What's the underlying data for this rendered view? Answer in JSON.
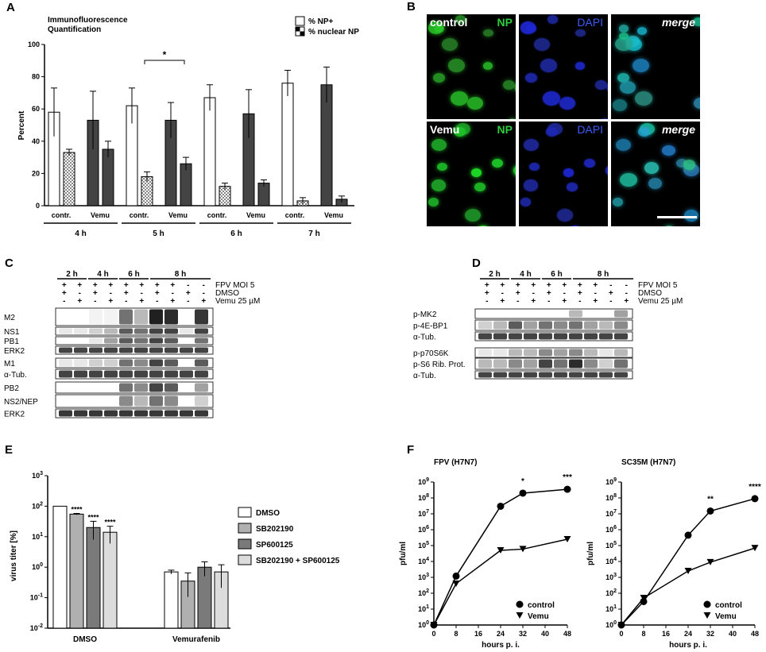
{
  "panels": {
    "A": "A",
    "B": "B",
    "C": "C",
    "D": "D",
    "E": "E",
    "F": "F"
  },
  "panelA": {
    "title_line1": "Immunofluorescence",
    "title_line2": "Quantification",
    "legend": [
      "% NP+",
      "% nuclear NP"
    ],
    "signif": "*",
    "hours": [
      "4 h",
      "5 h",
      "6 h",
      "7 h"
    ],
    "conditions": [
      "contr.",
      "Vemu"
    ]
  },
  "panelB": {
    "rows": [
      "control",
      "Vemu"
    ],
    "channels": [
      "NP",
      "DAPI",
      "merge"
    ]
  },
  "panelC": {
    "times": [
      "2 h",
      "4 h",
      "6 h",
      "8 h"
    ],
    "cond_labels": [
      "FPV MOI 5",
      "DMSO",
      "Vemu 25 µM"
    ],
    "row_fpv": [
      "+",
      "+",
      "+",
      "+",
      "+",
      "+",
      "+",
      "+",
      "-",
      "-"
    ],
    "row_dmso": [
      "+",
      "-",
      "+",
      "-",
      "+",
      "-",
      "+",
      "-",
      "+",
      "-"
    ],
    "row_vemu": [
      "-",
      "+",
      "-",
      "+",
      "-",
      "+",
      "-",
      "+",
      "-",
      "+"
    ],
    "bands": [
      "M2",
      "NS1",
      "PB1",
      "ERK2",
      "M1",
      "α-Tub.",
      "PB2",
      "NS2/NEP",
      "ERK2"
    ]
  },
  "panelD": {
    "times": [
      "2 h",
      "4 h",
      "6 h",
      "8 h"
    ],
    "cond_labels": [
      "FPV MOI 5",
      "DMSO",
      "Vemu 25 µM"
    ],
    "row_fpv": [
      "+",
      "+",
      "+",
      "+",
      "+",
      "+",
      "+",
      "+",
      "-",
      "-"
    ],
    "row_dmso": [
      "+",
      "-",
      "+",
      "-",
      "+",
      "-",
      "+",
      "-",
      "+",
      "-"
    ],
    "row_vemu": [
      "-",
      "+",
      "-",
      "+",
      "-",
      "+",
      "-",
      "+",
      "-",
      "+"
    ],
    "bands": [
      "p-MK2",
      "p-4E-BP1",
      "α-Tub.",
      "p-p70S6K",
      "p-S6 Rib. Prot.",
      "α-Tub."
    ]
  },
  "panelE": {
    "ylabel": "virus titer [%]",
    "groups": [
      "DMSO",
      "Vemurafenib"
    ],
    "legend": [
      "DMSO",
      "SB202190",
      "SP600125",
      "SB202190 + SP600125"
    ],
    "stars": [
      "****",
      "****",
      "****"
    ],
    "colors": [
      "#ffffff",
      "#b0b0b0",
      "#7a7a7a",
      "#dcdcdc"
    ]
  },
  "panelF": {
    "left_title": "FPV (H7N7)",
    "right_title": "SC35M (H7N7)",
    "ylabel": "pfu/ml",
    "xlabel": "hours p. i.",
    "legend": [
      "control",
      "Vemu"
    ],
    "left_stars": [
      "*",
      "***"
    ],
    "right_stars": [
      "**",
      "****"
    ]
  },
  "chart_data": [
    {
      "type": "bar",
      "panel": "A",
      "ylabel": "Percent",
      "ylim": [
        0,
        100
      ],
      "yticks": [
        0,
        20,
        40,
        60,
        80,
        100
      ],
      "categories": [
        "4 h contr.",
        "4 h Vemu",
        "5 h contr.",
        "5 h Vemu",
        "6 h contr.",
        "6 h Vemu",
        "7 h contr.",
        "7 h Vemu"
      ],
      "series": [
        {
          "name": "% NP+",
          "values": [
            58,
            53,
            62,
            53,
            67,
            57,
            76,
            75
          ],
          "errors": [
            15,
            18,
            11,
            11,
            8,
            15,
            8,
            11
          ],
          "color": "#ffffff"
        },
        {
          "name": "% nuclear NP",
          "values": [
            33,
            35,
            18,
            26,
            12,
            14,
            3,
            4
          ],
          "errors": [
            2,
            5,
            3,
            4,
            2,
            2,
            2,
            2
          ],
          "color": "#d0d0d0"
        }
      ],
      "annotations": [
        {
          "text": "*",
          "between": [
            "5 h contr.",
            "5 h Vemu"
          ]
        }
      ]
    },
    {
      "type": "bar",
      "panel": "E",
      "ylabel": "virus titer [%]",
      "yscale": "log",
      "ylim": [
        0.01,
        1000
      ],
      "ytick_exponents": [
        -2,
        -1,
        0,
        1,
        2,
        3
      ],
      "categories": [
        "DMSO",
        "Vemurafenib"
      ],
      "series": [
        {
          "name": "DMSO",
          "values": [
            100,
            0.7
          ],
          "errors": [
            0,
            0.1
          ]
        },
        {
          "name": "SB202190",
          "values": [
            55,
            0.35
          ],
          "errors": [
            3,
            0.3
          ]
        },
        {
          "name": "SP600125",
          "values": [
            20,
            1.0
          ],
          "errors": [
            12,
            0.5
          ]
        },
        {
          "name": "SB202190 + SP600125",
          "values": [
            14,
            0.7
          ],
          "errors": [
            8,
            0.5
          ]
        }
      ]
    },
    {
      "type": "line",
      "panel": "F-left",
      "title": "FPV (H7N7)",
      "xlabel": "hours p. i.",
      "ylabel": "pfu/ml",
      "yscale": "log",
      "xlim": [
        0,
        48
      ],
      "xticks": [
        0,
        8,
        16,
        24,
        32,
        40,
        48
      ],
      "ylim": [
        1,
        1000000000
      ],
      "ytick_exponents": [
        0,
        1,
        2,
        3,
        4,
        5,
        6,
        7,
        8,
        9
      ],
      "x": [
        0,
        8,
        24,
        32,
        48
      ],
      "series": [
        {
          "name": "control",
          "values": [
            1,
            1200,
            30000000,
            200000000,
            350000000
          ]
        },
        {
          "name": "Vemu",
          "values": [
            1,
            400,
            50000,
            60000,
            250000
          ]
        }
      ],
      "annotations": [
        {
          "x": 32,
          "text": "*"
        },
        {
          "x": 48,
          "text": "***"
        }
      ]
    },
    {
      "type": "line",
      "panel": "F-right",
      "title": "SC35M (H7N7)",
      "xlabel": "hours p. i.",
      "ylabel": "pfu/ml",
      "yscale": "log",
      "xlim": [
        0,
        48
      ],
      "xticks": [
        0,
        8,
        16,
        24,
        32,
        40,
        48
      ],
      "ylim": [
        1,
        1000000000
      ],
      "ytick_exponents": [
        0,
        1,
        2,
        3,
        4,
        5,
        6,
        7,
        8,
        9
      ],
      "x": [
        0,
        8,
        24,
        32,
        48
      ],
      "series": [
        {
          "name": "control",
          "values": [
            1,
            30,
            450000,
            15000000,
            90000000
          ]
        },
        {
          "name": "Vemu",
          "values": [
            1,
            50,
            2500,
            9000,
            70000
          ]
        }
      ],
      "annotations": [
        {
          "x": 32,
          "text": "**"
        },
        {
          "x": 48,
          "text": "****"
        }
      ]
    }
  ]
}
